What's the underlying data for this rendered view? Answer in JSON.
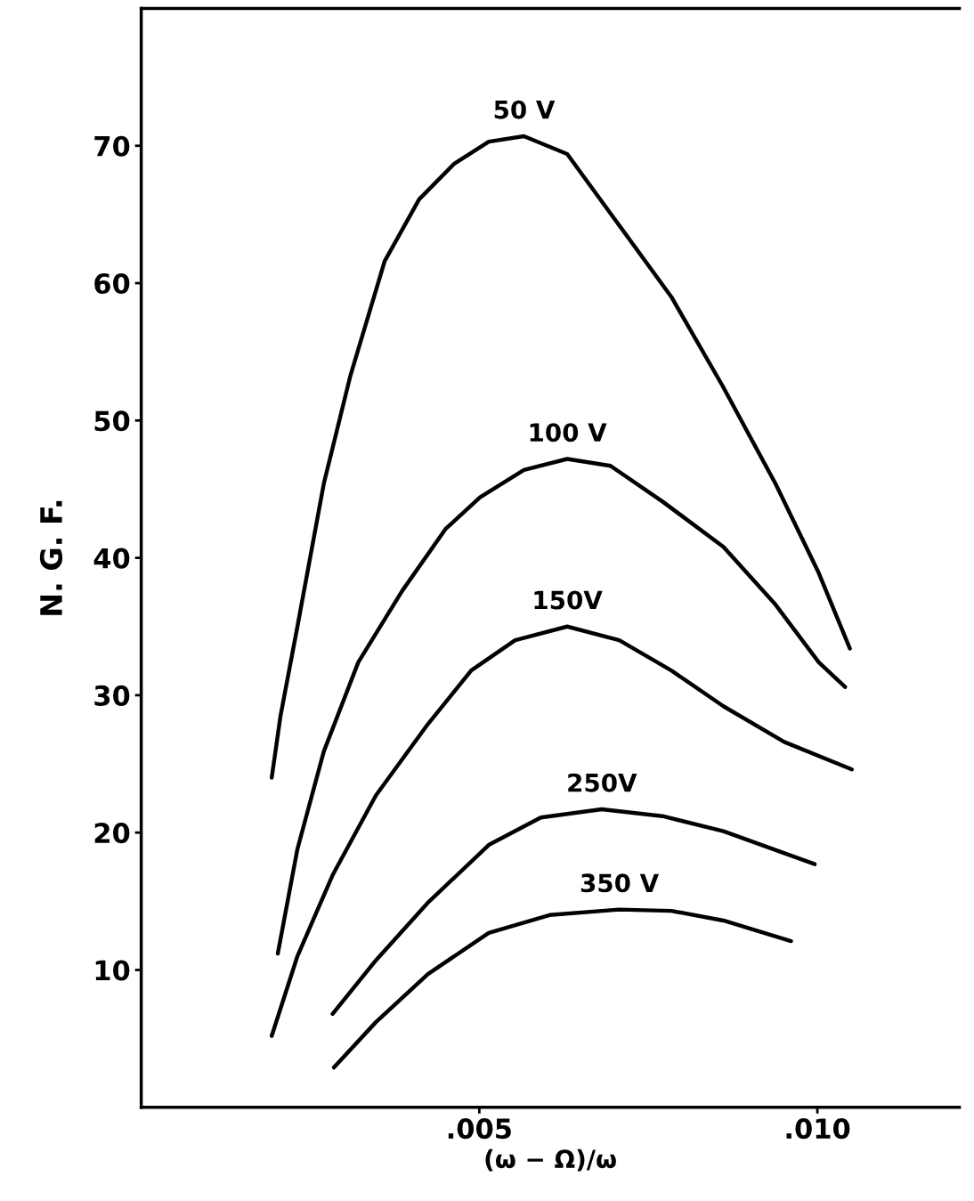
{
  "chart_data": {
    "type": "line",
    "xlabel": "(ω − Ω)/ω",
    "ylabel": "N. G. F.",
    "xlim": [
      0,
      0.0121
    ],
    "ylim": [
      0,
      80
    ],
    "xticks": [
      {
        "value": 0.005,
        "label": ".005"
      },
      {
        "value": 0.01,
        "label": ".010"
      }
    ],
    "yticks": [
      10,
      20,
      30,
      40,
      50,
      60,
      70
    ],
    "grid": false,
    "legend": false,
    "marker": "none",
    "line_style": "solid",
    "series": [
      {
        "name": "50 V",
        "color": "#000000",
        "x": [
          0.00193,
          0.00206,
          0.00231,
          0.0027,
          0.00309,
          0.0036,
          0.00411,
          0.00463,
          0.00514,
          0.00566,
          0.0063,
          0.00707,
          0.00784,
          0.0086,
          0.00938,
          0.01002,
          0.01048
        ],
        "values": [
          24.0,
          28.5,
          35.0,
          45.4,
          53.2,
          61.6,
          66.1,
          68.7,
          70.3,
          70.7,
          69.4,
          64.2,
          59.0,
          52.5,
          45.4,
          38.9,
          33.4
        ]
      },
      {
        "name": "100 V",
        "color": "#000000",
        "x": [
          0.00202,
          0.00231,
          0.0027,
          0.00321,
          0.00386,
          0.0045,
          0.00501,
          0.00566,
          0.0063,
          0.00694,
          0.00771,
          0.00861,
          0.00938,
          0.01002,
          0.01041
        ],
        "values": [
          11.2,
          18.8,
          25.9,
          32.4,
          37.6,
          42.1,
          44.4,
          46.4,
          47.2,
          46.7,
          44.1,
          40.8,
          36.6,
          32.4,
          30.6
        ]
      },
      {
        "name": "150V",
        "color": "#000000",
        "x": [
          0.00193,
          0.00231,
          0.00283,
          0.00347,
          0.00424,
          0.00488,
          0.00553,
          0.0063,
          0.00707,
          0.00784,
          0.00861,
          0.00951,
          0.01051
        ],
        "values": [
          5.2,
          11.0,
          16.9,
          22.7,
          27.9,
          31.8,
          34.0,
          35.0,
          34.0,
          31.8,
          29.2,
          26.6,
          24.6
        ]
      },
      {
        "name": "250V",
        "color": "#000000",
        "x": [
          0.00283,
          0.00347,
          0.00424,
          0.00514,
          0.00591,
          0.00681,
          0.00771,
          0.00861,
          0.00996
        ],
        "values": [
          6.8,
          10.7,
          14.9,
          19.1,
          21.1,
          21.7,
          21.2,
          20.1,
          17.7
        ]
      },
      {
        "name": "350 V",
        "color": "#000000",
        "x": [
          0.00285,
          0.00347,
          0.00424,
          0.00514,
          0.00604,
          0.00707,
          0.00784,
          0.00861,
          0.00961
        ],
        "values": [
          2.9,
          6.2,
          9.7,
          12.7,
          14.0,
          14.4,
          14.3,
          13.6,
          12.1
        ]
      }
    ]
  }
}
